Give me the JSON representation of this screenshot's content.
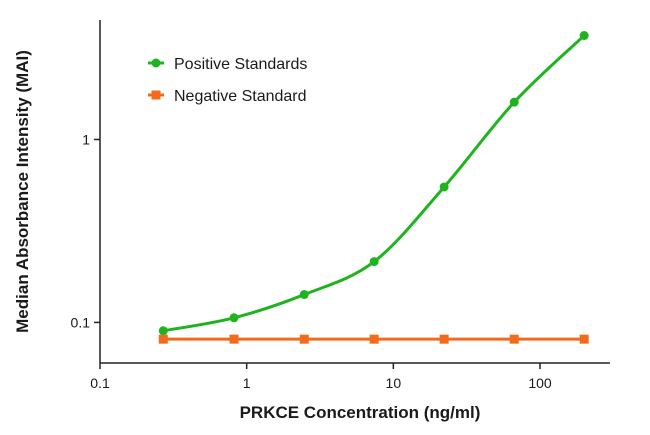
{
  "chart_data": {
    "type": "scatter",
    "x_scale": "log",
    "y_scale": "log",
    "xlabel": "PRKCE Concentration (ng/ml)",
    "ylabel": "Median Absorbance Intensity (MAI)",
    "xlim": [
      0.1,
      300
    ],
    "ylim": [
      0.06,
      4.5
    ],
    "x_ticks": [
      {
        "value": 0.1,
        "label": "0.1"
      },
      {
        "value": 1,
        "label": "1"
      },
      {
        "value": 10,
        "label": "10"
      },
      {
        "value": 100,
        "label": "100"
      }
    ],
    "y_ticks": [
      {
        "value": 0.1,
        "label": "0.1"
      },
      {
        "value": 1,
        "label": "1"
      }
    ],
    "grid": false,
    "legend_position": "top-left",
    "series": [
      {
        "name": "Positive Standards",
        "color": "#1fb41f",
        "marker": "circle",
        "fit_curve": true,
        "x": [
          0.27,
          0.82,
          2.47,
          7.4,
          22.2,
          66.7,
          200
        ],
        "y": [
          0.09,
          0.106,
          0.142,
          0.215,
          0.55,
          1.6,
          3.7
        ]
      },
      {
        "name": "Negative Standard",
        "color": "#f26b1d",
        "marker": "square",
        "fit_curve": false,
        "x": [
          0.27,
          0.82,
          2.47,
          7.4,
          22.2,
          66.7,
          200
        ],
        "y": [
          0.081,
          0.081,
          0.081,
          0.081,
          0.081,
          0.081,
          0.081
        ]
      }
    ]
  }
}
